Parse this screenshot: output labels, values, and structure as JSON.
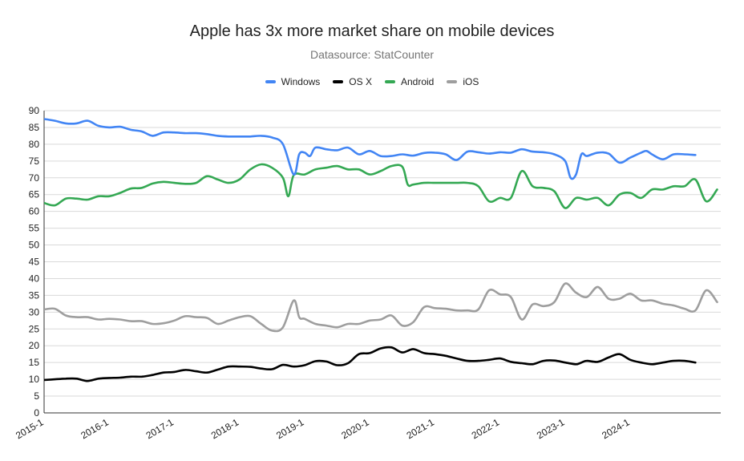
{
  "chart_data": {
    "type": "line",
    "title": "Apple has 3x more market share on mobile devices",
    "subtitle": "Datasource: StatCounter",
    "xlabel": "",
    "ylabel": "",
    "ylim": [
      0,
      90
    ],
    "y_ticks": [
      "0",
      "5",
      "10",
      "15",
      "20",
      "25",
      "30",
      "35",
      "40",
      "45",
      "50",
      "55",
      "60",
      "65",
      "70",
      "75",
      "80",
      "85",
      "90"
    ],
    "x_ticks": [
      {
        "label": "2015-1",
        "t": 0
      },
      {
        "label": "2016-1",
        "t": 12
      },
      {
        "label": "2017-1",
        "t": 24
      },
      {
        "label": "2018-1",
        "t": 36
      },
      {
        "label": "2019-1",
        "t": 48
      },
      {
        "label": "2020-1",
        "t": 60
      },
      {
        "label": "2021-1",
        "t": 72
      },
      {
        "label": "2022-1",
        "t": 84
      },
      {
        "label": "2023-1",
        "t": 96
      },
      {
        "label": "2024-1",
        "t": 108
      }
    ],
    "x_max": 120,
    "grid": true,
    "legend_position": "top",
    "series": [
      {
        "name": "Windows",
        "color": "#4285f4",
        "points": [
          [
            0,
            87.5
          ],
          [
            2,
            87
          ],
          [
            4,
            86.2
          ],
          [
            6,
            86.2
          ],
          [
            8,
            87
          ],
          [
            10,
            85.5
          ],
          [
            12,
            85
          ],
          [
            14,
            85.2
          ],
          [
            16,
            84.3
          ],
          [
            18,
            83.8
          ],
          [
            20,
            82.5
          ],
          [
            22,
            83.5
          ],
          [
            24,
            83.5
          ],
          [
            26,
            83.3
          ],
          [
            28,
            83.3
          ],
          [
            30,
            83
          ],
          [
            32,
            82.5
          ],
          [
            34,
            82.3
          ],
          [
            36,
            82.3
          ],
          [
            38,
            82.3
          ],
          [
            40,
            82.5
          ],
          [
            42,
            82
          ],
          [
            44,
            80
          ],
          [
            46,
            71
          ],
          [
            47,
            77
          ],
          [
            48,
            77.5
          ],
          [
            49,
            76.5
          ],
          [
            50,
            79
          ],
          [
            52,
            78.5
          ],
          [
            54,
            78.2
          ],
          [
            56,
            79
          ],
          [
            58,
            77
          ],
          [
            60,
            78
          ],
          [
            62,
            76.5
          ],
          [
            64,
            76.5
          ],
          [
            66,
            77
          ],
          [
            68,
            76.6
          ],
          [
            70,
            77.4
          ],
          [
            72,
            77.5
          ],
          [
            74,
            77
          ],
          [
            76,
            75.3
          ],
          [
            78,
            77.8
          ],
          [
            80,
            77.6
          ],
          [
            82,
            77.2
          ],
          [
            84,
            77.6
          ],
          [
            86,
            77.5
          ],
          [
            88,
            78.5
          ],
          [
            90,
            77.8
          ],
          [
            92,
            77.6
          ],
          [
            94,
            77
          ],
          [
            96,
            75
          ],
          [
            97,
            70
          ],
          [
            98,
            71
          ],
          [
            99,
            77
          ],
          [
            100,
            76.5
          ],
          [
            102,
            77.5
          ],
          [
            104,
            77.2
          ],
          [
            106,
            74.5
          ],
          [
            108,
            76
          ],
          [
            110,
            77.5
          ],
          [
            111,
            78
          ],
          [
            112,
            77
          ],
          [
            114,
            75.5
          ],
          [
            116,
            77
          ],
          [
            118,
            77
          ],
          [
            120,
            76.8
          ]
        ]
      },
      {
        "name": "OS X",
        "color": "#000000",
        "points": [
          [
            0,
            9.8
          ],
          [
            2,
            10
          ],
          [
            4,
            10.2
          ],
          [
            6,
            10.2
          ],
          [
            8,
            9.5
          ],
          [
            10,
            10.2
          ],
          [
            12,
            10.4
          ],
          [
            14,
            10.5
          ],
          [
            16,
            10.8
          ],
          [
            18,
            10.8
          ],
          [
            20,
            11.3
          ],
          [
            22,
            12
          ],
          [
            24,
            12.2
          ],
          [
            26,
            12.8
          ],
          [
            28,
            12.4
          ],
          [
            30,
            12
          ],
          [
            32,
            12.9
          ],
          [
            34,
            13.8
          ],
          [
            36,
            13.8
          ],
          [
            38,
            13.7
          ],
          [
            40,
            13.2
          ],
          [
            42,
            13
          ],
          [
            44,
            14.3
          ],
          [
            46,
            13.8
          ],
          [
            48,
            14.2
          ],
          [
            50,
            15.4
          ],
          [
            52,
            15.3
          ],
          [
            54,
            14.2
          ],
          [
            56,
            14.8
          ],
          [
            58,
            17.5
          ],
          [
            60,
            17.8
          ],
          [
            62,
            19.2
          ],
          [
            64,
            19.5
          ],
          [
            66,
            18
          ],
          [
            68,
            19
          ],
          [
            70,
            17.8
          ],
          [
            72,
            17.5
          ],
          [
            74,
            17
          ],
          [
            76,
            16.2
          ],
          [
            78,
            15.5
          ],
          [
            80,
            15.5
          ],
          [
            82,
            15.8
          ],
          [
            84,
            16.2
          ],
          [
            86,
            15.2
          ],
          [
            88,
            14.8
          ],
          [
            90,
            14.5
          ],
          [
            92,
            15.5
          ],
          [
            94,
            15.6
          ],
          [
            96,
            15
          ],
          [
            98,
            14.5
          ],
          [
            99,
            15
          ],
          [
            100,
            15.5
          ],
          [
            102,
            15.2
          ],
          [
            104,
            16.5
          ],
          [
            106,
            17.5
          ],
          [
            108,
            15.8
          ],
          [
            110,
            15
          ],
          [
            112,
            14.5
          ],
          [
            114,
            15
          ],
          [
            116,
            15.5
          ],
          [
            118,
            15.5
          ],
          [
            120,
            15
          ]
        ]
      },
      {
        "name": "Android",
        "color": "#34a853",
        "points": [
          [
            0,
            62.5
          ],
          [
            2,
            61.8
          ],
          [
            4,
            63.8
          ],
          [
            6,
            63.8
          ],
          [
            8,
            63.5
          ],
          [
            10,
            64.5
          ],
          [
            12,
            64.5
          ],
          [
            14,
            65.5
          ],
          [
            16,
            66.8
          ],
          [
            18,
            67
          ],
          [
            20,
            68.3
          ],
          [
            22,
            68.8
          ],
          [
            24,
            68.5
          ],
          [
            26,
            68.2
          ],
          [
            28,
            68.5
          ],
          [
            30,
            70.5
          ],
          [
            32,
            69.5
          ],
          [
            34,
            68.5
          ],
          [
            36,
            69.5
          ],
          [
            38,
            72.5
          ],
          [
            40,
            74
          ],
          [
            42,
            73
          ],
          [
            44,
            70
          ],
          [
            45,
            64.5
          ],
          [
            46,
            70.8
          ],
          [
            48,
            71
          ],
          [
            50,
            72.5
          ],
          [
            52,
            73
          ],
          [
            54,
            73.5
          ],
          [
            56,
            72.5
          ],
          [
            58,
            72.5
          ],
          [
            60,
            71
          ],
          [
            62,
            72
          ],
          [
            64,
            73.5
          ],
          [
            66,
            73.3
          ],
          [
            67,
            68
          ],
          [
            68,
            68
          ],
          [
            70,
            68.5
          ],
          [
            72,
            68.5
          ],
          [
            74,
            68.5
          ],
          [
            76,
            68.5
          ],
          [
            78,
            68.5
          ],
          [
            80,
            67.5
          ],
          [
            82,
            63
          ],
          [
            84,
            64
          ],
          [
            86,
            64
          ],
          [
            88,
            72
          ],
          [
            90,
            67.5
          ],
          [
            92,
            67
          ],
          [
            94,
            66
          ],
          [
            96,
            61
          ],
          [
            98,
            64
          ],
          [
            100,
            63.5
          ],
          [
            102,
            64
          ],
          [
            104,
            61.8
          ],
          [
            106,
            65
          ],
          [
            108,
            65.5
          ],
          [
            110,
            64
          ],
          [
            112,
            66.5
          ],
          [
            114,
            66.5
          ],
          [
            116,
            67.5
          ],
          [
            118,
            67.5
          ],
          [
            120,
            69.5
          ],
          [
            122,
            63
          ],
          [
            124,
            66.5
          ]
        ]
      },
      {
        "name": "iOS",
        "color": "#9e9e9e",
        "points": [
          [
            0,
            30.8
          ],
          [
            2,
            31
          ],
          [
            4,
            29
          ],
          [
            6,
            28.5
          ],
          [
            8,
            28.5
          ],
          [
            10,
            27.8
          ],
          [
            12,
            28
          ],
          [
            14,
            27.8
          ],
          [
            16,
            27.3
          ],
          [
            18,
            27.3
          ],
          [
            20,
            26.5
          ],
          [
            22,
            26.7
          ],
          [
            24,
            27.5
          ],
          [
            26,
            28.8
          ],
          [
            28,
            28.5
          ],
          [
            30,
            28.3
          ],
          [
            32,
            26.5
          ],
          [
            34,
            27.5
          ],
          [
            36,
            28.5
          ],
          [
            38,
            28.8
          ],
          [
            40,
            26.5
          ],
          [
            42,
            24.5
          ],
          [
            44,
            25.5
          ],
          [
            46,
            33.5
          ],
          [
            47,
            28.5
          ],
          [
            48,
            28
          ],
          [
            50,
            26.5
          ],
          [
            52,
            26
          ],
          [
            54,
            25.5
          ],
          [
            56,
            26.5
          ],
          [
            58,
            26.5
          ],
          [
            60,
            27.5
          ],
          [
            62,
            27.8
          ],
          [
            64,
            29
          ],
          [
            66,
            26
          ],
          [
            68,
            27
          ],
          [
            70,
            31.5
          ],
          [
            72,
            31.2
          ],
          [
            74,
            31
          ],
          [
            76,
            30.5
          ],
          [
            78,
            30.5
          ],
          [
            80,
            30.8
          ],
          [
            82,
            36.5
          ],
          [
            84,
            35.3
          ],
          [
            86,
            34.5
          ],
          [
            88,
            27.8
          ],
          [
            90,
            32.3
          ],
          [
            92,
            31.8
          ],
          [
            94,
            33
          ],
          [
            96,
            38.5
          ],
          [
            98,
            35.8
          ],
          [
            100,
            34.5
          ],
          [
            102,
            37.5
          ],
          [
            104,
            34
          ],
          [
            106,
            34
          ],
          [
            108,
            35.5
          ],
          [
            110,
            33.5
          ],
          [
            112,
            33.5
          ],
          [
            114,
            32.5
          ],
          [
            116,
            32
          ],
          [
            118,
            31
          ],
          [
            120,
            30.5
          ],
          [
            122,
            36.5
          ],
          [
            124,
            33
          ]
        ]
      }
    ]
  }
}
